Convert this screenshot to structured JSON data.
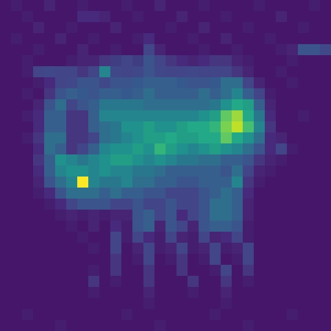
{
  "chart_data": {
    "type": "heatmap",
    "color": "viridis",
    "zlim": [
      0,
      1
    ],
    "tick_labels": false,
    "cells": [
      [
        0.06,
        0.08,
        0.06,
        0.06,
        0.1,
        0.06,
        0.06,
        0.08,
        0.06,
        0.06,
        0.06,
        0.08,
        0.06,
        0.06,
        0.1,
        0.06,
        0.06,
        0.06,
        0.08,
        0.06,
        0.06,
        0.06,
        0.06,
        0.08,
        0.06,
        0.06,
        0.06,
        0.06,
        0.08,
        0.06
      ],
      [
        0.06,
        0.06,
        0.08,
        0.06,
        0.06,
        0.06,
        0.06,
        0.12,
        0.12,
        0.1,
        0.06,
        0.06,
        0.08,
        0.06,
        0.06,
        0.06,
        0.1,
        0.06,
        0.06,
        0.06,
        0.08,
        0.06,
        0.06,
        0.06,
        0.06,
        0.1,
        0.06,
        0.06,
        0.06,
        0.06
      ],
      [
        0.06,
        0.06,
        0.06,
        0.1,
        0.06,
        0.06,
        0.08,
        0.06,
        0.06,
        0.06,
        0.1,
        0.06,
        0.06,
        0.06,
        0.06,
        0.08,
        0.06,
        0.06,
        0.1,
        0.06,
        0.06,
        0.06,
        0.08,
        0.06,
        0.06,
        0.06,
        0.06,
        0.08,
        0.06,
        0.06
      ],
      [
        0.06,
        0.08,
        0.06,
        0.06,
        0.06,
        0.1,
        0.06,
        0.06,
        0.08,
        0.06,
        0.06,
        0.06,
        0.08,
        0.12,
        0.06,
        0.06,
        0.06,
        0.08,
        0.06,
        0.06,
        0.1,
        0.06,
        0.06,
        0.06,
        0.08,
        0.06,
        0.06,
        0.06,
        0.06,
        0.06
      ],
      [
        0.06,
        0.06,
        0.06,
        0.08,
        0.06,
        0.06,
        0.06,
        0.1,
        0.06,
        0.06,
        0.08,
        0.06,
        0.06,
        0.2,
        0.1,
        0.06,
        0.06,
        0.06,
        0.08,
        0.06,
        0.06,
        0.08,
        0.06,
        0.06,
        0.06,
        0.08,
        0.1,
        0.25,
        0.25,
        0.22
      ],
      [
        0.06,
        0.06,
        0.08,
        0.06,
        0.06,
        0.06,
        0.08,
        0.1,
        0.1,
        0.15,
        0.18,
        0.2,
        0.18,
        0.25,
        0.2,
        0.15,
        0.12,
        0.1,
        0.12,
        0.15,
        0.15,
        0.1,
        0.08,
        0.06,
        0.06,
        0.06,
        0.08,
        0.06,
        0.06,
        0.06
      ],
      [
        0.06,
        0.06,
        0.08,
        0.2,
        0.22,
        0.2,
        0.2,
        0.15,
        0.2,
        0.45,
        0.22,
        0.2,
        0.22,
        0.25,
        0.22,
        0.2,
        0.2,
        0.22,
        0.2,
        0.2,
        0.2,
        0.15,
        0.1,
        0.06,
        0.06,
        0.08,
        0.06,
        0.06,
        0.06,
        0.06
      ],
      [
        0.06,
        0.06,
        0.06,
        0.08,
        0.12,
        0.2,
        0.22,
        0.25,
        0.25,
        0.22,
        0.25,
        0.25,
        0.28,
        0.3,
        0.3,
        0.3,
        0.28,
        0.25,
        0.25,
        0.28,
        0.35,
        0.35,
        0.2,
        0.1,
        0.06,
        0.06,
        0.08,
        0.06,
        0.06,
        0.06
      ],
      [
        0.06,
        0.06,
        0.08,
        0.06,
        0.15,
        0.25,
        0.3,
        0.28,
        0.25,
        0.3,
        0.3,
        0.28,
        0.3,
        0.35,
        0.3,
        0.3,
        0.3,
        0.3,
        0.35,
        0.3,
        0.35,
        0.45,
        0.3,
        0.2,
        0.08,
        0.06,
        0.06,
        0.06,
        0.06,
        0.06
      ],
      [
        0.06,
        0.06,
        0.06,
        0.1,
        0.25,
        0.35,
        0.2,
        0.25,
        0.3,
        0.4,
        0.4,
        0.4,
        0.4,
        0.35,
        0.35,
        0.35,
        0.35,
        0.35,
        0.35,
        0.4,
        0.5,
        0.6,
        0.55,
        0.3,
        0.1,
        0.06,
        0.06,
        0.06,
        0.06,
        0.06
      ],
      [
        0.06,
        0.06,
        0.08,
        0.12,
        0.3,
        0.3,
        0.15,
        0.15,
        0.3,
        0.45,
        0.45,
        0.45,
        0.45,
        0.45,
        0.45,
        0.45,
        0.45,
        0.45,
        0.5,
        0.55,
        0.75,
        0.85,
        0.6,
        0.4,
        0.12,
        0.06,
        0.06,
        0.08,
        0.06,
        0.06
      ],
      [
        0.06,
        0.06,
        0.06,
        0.12,
        0.3,
        0.3,
        0.15,
        0.15,
        0.3,
        0.35,
        0.4,
        0.5,
        0.5,
        0.55,
        0.5,
        0.5,
        0.55,
        0.6,
        0.6,
        0.65,
        0.8,
        0.9,
        0.7,
        0.45,
        0.15,
        0.06,
        0.06,
        0.06,
        0.06,
        0.06
      ],
      [
        0.06,
        0.06,
        0.08,
        0.15,
        0.35,
        0.35,
        0.15,
        0.15,
        0.2,
        0.35,
        0.4,
        0.45,
        0.5,
        0.55,
        0.55,
        0.6,
        0.55,
        0.55,
        0.6,
        0.6,
        0.75,
        0.6,
        0.5,
        0.35,
        0.12,
        0.1,
        0.06,
        0.06,
        0.06,
        0.06
      ],
      [
        0.06,
        0.06,
        0.06,
        0.12,
        0.35,
        0.3,
        0.15,
        0.2,
        0.3,
        0.45,
        0.5,
        0.5,
        0.55,
        0.5,
        0.65,
        0.55,
        0.5,
        0.45,
        0.5,
        0.55,
        0.5,
        0.45,
        0.35,
        0.25,
        0.12,
        0.2,
        0.08,
        0.06,
        0.06,
        0.06
      ],
      [
        0.06,
        0.06,
        0.06,
        0.15,
        0.3,
        0.5,
        0.45,
        0.4,
        0.45,
        0.5,
        0.55,
        0.55,
        0.5,
        0.45,
        0.5,
        0.45,
        0.4,
        0.4,
        0.35,
        0.35,
        0.3,
        0.3,
        0.25,
        0.15,
        0.1,
        0.08,
        0.06,
        0.06,
        0.06,
        0.06
      ],
      [
        0.06,
        0.06,
        0.06,
        0.12,
        0.3,
        0.45,
        0.5,
        0.5,
        0.45,
        0.5,
        0.45,
        0.45,
        0.4,
        0.4,
        0.35,
        0.3,
        0.3,
        0.3,
        0.3,
        0.3,
        0.25,
        0.35,
        0.2,
        0.1,
        0.08,
        0.06,
        0.06,
        0.06,
        0.06,
        0.06
      ],
      [
        0.06,
        0.06,
        0.06,
        0.1,
        0.25,
        0.35,
        0.45,
        1,
        0.45,
        0.4,
        0.4,
        0.45,
        0.35,
        0.35,
        0.3,
        0.3,
        0.25,
        0.25,
        0.3,
        0.3,
        0.3,
        0.45,
        0.15,
        0.08,
        0.06,
        0.06,
        0.06,
        0.06,
        0.06,
        0.06
      ],
      [
        0.06,
        0.06,
        0.06,
        0.08,
        0.12,
        0.25,
        0.35,
        0.35,
        0.35,
        0.3,
        0.35,
        0.3,
        0.3,
        0.25,
        0.25,
        0.2,
        0.2,
        0.2,
        0.25,
        0.3,
        0.35,
        0.3,
        0.12,
        0.06,
        0.06,
        0.06,
        0.06,
        0.06,
        0.06,
        0.06
      ],
      [
        0.06,
        0.06,
        0.06,
        0.06,
        0.08,
        0.12,
        0.2,
        0.25,
        0.25,
        0.25,
        0.2,
        0.2,
        0.25,
        0.2,
        0.2,
        0.25,
        0.2,
        0.2,
        0.25,
        0.35,
        0.35,
        0.3,
        0.1,
        0.06,
        0.06,
        0.06,
        0.06,
        0.06,
        0.06,
        0.06
      ],
      [
        0.06,
        0.06,
        0.06,
        0.06,
        0.06,
        0.08,
        0.1,
        0.08,
        0.1,
        0.08,
        0.1,
        0.1,
        0.25,
        0.3,
        0.2,
        0.25,
        0.12,
        0.2,
        0.25,
        0.35,
        0.35,
        0.3,
        0.1,
        0.06,
        0.06,
        0.06,
        0.06,
        0.06,
        0.06,
        0.06
      ],
      [
        0.06,
        0.06,
        0.06,
        0.06,
        0.06,
        0.06,
        0.08,
        0.06,
        0.1,
        0.06,
        0.12,
        0.08,
        0.25,
        0.3,
        0.1,
        0.25,
        0.2,
        0.1,
        0.25,
        0.3,
        0.3,
        0.25,
        0.08,
        0.06,
        0.06,
        0.06,
        0.06,
        0.06,
        0.06,
        0.06
      ],
      [
        0.06,
        0.06,
        0.06,
        0.06,
        0.06,
        0.06,
        0.06,
        0.08,
        0.06,
        0.06,
        0.2,
        0.08,
        0.2,
        0.12,
        0.08,
        0.2,
        0.1,
        0.08,
        0.2,
        0.1,
        0.12,
        0.2,
        0.08,
        0.06,
        0.06,
        0.06,
        0.06,
        0.06,
        0.06,
        0.06
      ],
      [
        0.06,
        0.06,
        0.06,
        0.06,
        0.06,
        0.06,
        0.06,
        0.06,
        0.08,
        0.06,
        0.2,
        0.06,
        0.1,
        0.2,
        0.08,
        0.1,
        0.2,
        0.08,
        0.1,
        0.2,
        0.08,
        0.1,
        0.2,
        0.06,
        0.06,
        0.06,
        0.06,
        0.06,
        0.06,
        0.06
      ],
      [
        0.06,
        0.06,
        0.06,
        0.06,
        0.06,
        0.06,
        0.06,
        0.06,
        0.06,
        0.06,
        0.15,
        0.06,
        0.08,
        0.2,
        0.06,
        0.08,
        0.15,
        0.06,
        0.08,
        0.2,
        0.06,
        0.08,
        0.2,
        0.06,
        0.06,
        0.06,
        0.06,
        0.06,
        0.06,
        0.06
      ],
      [
        0.06,
        0.06,
        0.06,
        0.06,
        0.06,
        0.06,
        0.06,
        0.06,
        0.08,
        0.06,
        0.15,
        0.06,
        0.06,
        0.15,
        0.06,
        0.06,
        0.15,
        0.06,
        0.06,
        0.08,
        0.2,
        0.06,
        0.15,
        0.06,
        0.06,
        0.06,
        0.06,
        0.06,
        0.06,
        0.06
      ],
      [
        0.06,
        0.06,
        0.06,
        0.06,
        0.06,
        0.06,
        0.06,
        0.06,
        0.15,
        0.06,
        0.08,
        0.06,
        0.06,
        0.15,
        0.06,
        0.06,
        0.06,
        0.15,
        0.06,
        0.06,
        0.15,
        0.06,
        0.08,
        0.06,
        0.06,
        0.06,
        0.06,
        0.06,
        0.06,
        0.06
      ],
      [
        0.06,
        0.06,
        0.06,
        0.06,
        0.06,
        0.06,
        0.06,
        0.06,
        0.08,
        0.06,
        0.06,
        0.06,
        0.06,
        0.1,
        0.06,
        0.06,
        0.06,
        0.08,
        0.06,
        0.06,
        0.1,
        0.06,
        0.06,
        0.06,
        0.06,
        0.06,
        0.06,
        0.06,
        0.06,
        0.06
      ],
      [
        0.06,
        0.06,
        0.06,
        0.06,
        0.06,
        0.06,
        0.06,
        0.06,
        0.06,
        0.06,
        0.06,
        0.06,
        0.06,
        0.08,
        0.06,
        0.06,
        0.06,
        0.06,
        0.06,
        0.06,
        0.08,
        0.06,
        0.06,
        0.06,
        0.06,
        0.06,
        0.06,
        0.06,
        0.06,
        0.06
      ],
      [
        0.06,
        0.06,
        0.08,
        0.06,
        0.06,
        0.06,
        0.06,
        0.06,
        0.06,
        0.06,
        0.06,
        0.08,
        0.06,
        0.06,
        0.06,
        0.06,
        0.06,
        0.06,
        0.06,
        0.08,
        0.06,
        0.06,
        0.06,
        0.06,
        0.06,
        0.06,
        0.08,
        0.06,
        0.06,
        0.06
      ],
      [
        0.06,
        0.06,
        0.06,
        0.06,
        0.06,
        0.08,
        0.06,
        0.06,
        0.06,
        0.06,
        0.06,
        0.06,
        0.06,
        0.06,
        0.08,
        0.06,
        0.06,
        0.06,
        0.06,
        0.06,
        0.06,
        0.06,
        0.08,
        0.06,
        0.06,
        0.06,
        0.06,
        0.06,
        0.06,
        0.06
      ]
    ]
  }
}
